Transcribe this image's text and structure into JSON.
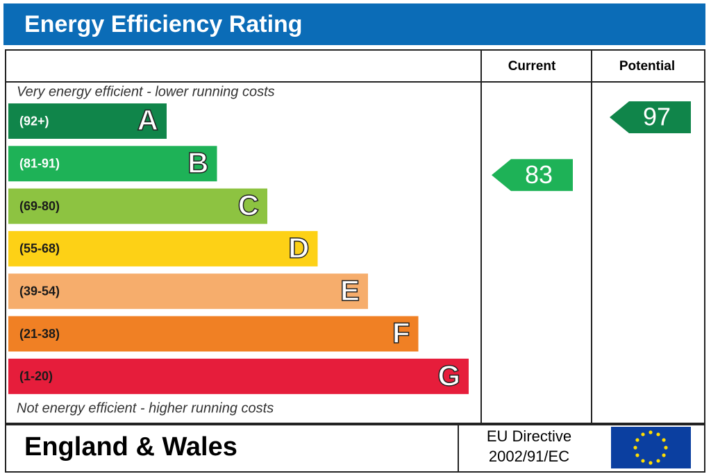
{
  "title": "Energy Efficiency Rating",
  "columns": {
    "current": "Current",
    "potential": "Potential"
  },
  "top_note": "Very energy efficient - lower running costs",
  "bottom_note": "Not energy efficient - higher running costs",
  "bands": [
    {
      "range": "(92+)",
      "letter": "A",
      "color": "#10854a",
      "text_color": "#ffffff"
    },
    {
      "range": "(81-91)",
      "letter": "B",
      "color": "#1eb257",
      "text_color": "#ffffff"
    },
    {
      "range": "(69-80)",
      "letter": "C",
      "color": "#8dc341",
      "text_color": "#1a1a1a"
    },
    {
      "range": "(55-68)",
      "letter": "D",
      "color": "#fdd116",
      "text_color": "#1a1a1a"
    },
    {
      "range": "(39-54)",
      "letter": "E",
      "color": "#f6ad6c",
      "text_color": "#1a1a1a"
    },
    {
      "range": "(21-38)",
      "letter": "F",
      "color": "#f08024",
      "text_color": "#1a1a1a"
    },
    {
      "range": "(1-20)",
      "letter": "G",
      "color": "#e61d3b",
      "text_color": "#1a1a1a"
    }
  ],
  "current": 83,
  "potential": 97,
  "footer": {
    "region": "England & Wales",
    "directive_line1": "EU Directive",
    "directive_line2": "2002/91/EC"
  }
}
